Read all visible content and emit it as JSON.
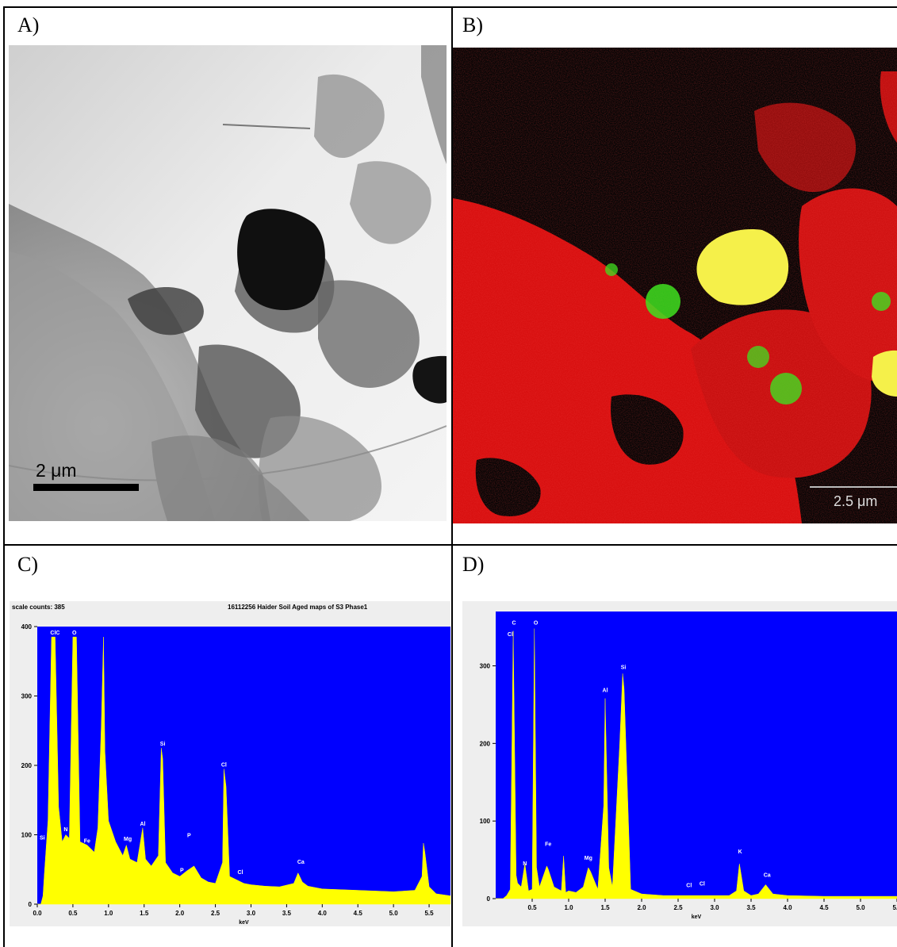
{
  "panels": {
    "a": {
      "label": "A)",
      "scalebar": "2 μm",
      "colors": {
        "background": "#e8e8e8",
        "particle_dark": "#101010"
      }
    },
    "b": {
      "label": "B)",
      "scalebar": "2.5 μm",
      "colors": {
        "background": "#050505",
        "map_red": "#e01010",
        "map_green": "#40e020",
        "map_yellow": "#f5f04a"
      }
    },
    "c": {
      "label": "C)",
      "header_left": "scale counts: 385",
      "header_right": "16112256 Haider Soil Aged maps of S3 Phase1"
    },
    "d": {
      "label": "D)"
    }
  },
  "chart_data": [
    {
      "type": "area",
      "panel": "C",
      "title": "16112256 Haider Soil Aged maps of S3 Phase1",
      "subtitle": "scale counts: 385",
      "xlabel": "keV",
      "ylabel": "",
      "xlim": [
        0,
        5.8
      ],
      "ylim": [
        0,
        400
      ],
      "xticks": [
        "0.0",
        "0.5",
        "1.0",
        "1.5",
        "2.0",
        "2.5",
        "3.0",
        "3.5",
        "4.0",
        "4.5",
        "5.0",
        "5.5"
      ],
      "yticks": [
        "0",
        "100",
        "200",
        "300",
        "400"
      ],
      "colors": {
        "plot_bg": "#0000ff",
        "fill": "#ffff00"
      },
      "x": [
        0.0,
        0.05,
        0.08,
        0.1,
        0.15,
        0.2,
        0.25,
        0.3,
        0.35,
        0.4,
        0.45,
        0.5,
        0.55,
        0.6,
        0.7,
        0.8,
        0.85,
        0.9,
        0.93,
        0.95,
        1.0,
        1.1,
        1.2,
        1.25,
        1.3,
        1.4,
        1.48,
        1.52,
        1.6,
        1.7,
        1.74,
        1.76,
        1.8,
        1.9,
        2.0,
        2.1,
        2.2,
        2.3,
        2.4,
        2.5,
        2.6,
        2.62,
        2.65,
        2.7,
        2.8,
        2.9,
        3.0,
        3.2,
        3.4,
        3.6,
        3.66,
        3.72,
        3.8,
        4.0,
        4.5,
        5.0,
        5.3,
        5.4,
        5.42,
        5.44,
        5.5,
        5.6,
        5.8
      ],
      "y": [
        0,
        0,
        12,
        45,
        120,
        385,
        385,
        140,
        90,
        100,
        95,
        385,
        385,
        90,
        85,
        75,
        110,
        260,
        385,
        220,
        120,
        90,
        70,
        85,
        65,
        60,
        110,
        65,
        55,
        70,
        225,
        210,
        60,
        45,
        40,
        48,
        55,
        38,
        32,
        30,
        60,
        195,
        170,
        40,
        35,
        30,
        28,
        26,
        25,
        30,
        45,
        32,
        26,
        22,
        20,
        18,
        20,
        40,
        88,
        75,
        25,
        15,
        12
      ],
      "annotations": [
        {
          "text": "Si",
          "x": 0.07,
          "y": 90
        },
        {
          "text": "ClC",
          "x": 0.25,
          "y": 385
        },
        {
          "text": "N",
          "x": 0.4,
          "y": 102
        },
        {
          "text": "O",
          "x": 0.52,
          "y": 385
        },
        {
          "text": "Fe",
          "x": 0.7,
          "y": 85
        },
        {
          "text": "Mg",
          "x": 1.27,
          "y": 88
        },
        {
          "text": "Al",
          "x": 1.48,
          "y": 110
        },
        {
          "text": "Si",
          "x": 1.76,
          "y": 225
        },
        {
          "text": "P",
          "x": 2.03,
          "y": 43
        },
        {
          "text": "P",
          "x": 2.13,
          "y": 93
        },
        {
          "text": "Cl",
          "x": 2.62,
          "y": 195
        },
        {
          "text": "Cl",
          "x": 2.85,
          "y": 40
        },
        {
          "text": "Ca",
          "x": 3.7,
          "y": 55
        }
      ]
    },
    {
      "type": "area",
      "panel": "D",
      "xlabel": "keV",
      "ylabel": "",
      "xlim": [
        0,
        5.5
      ],
      "ylim": [
        0,
        370
      ],
      "xticks": [
        "0.5",
        "1.0",
        "1.5",
        "2.0",
        "2.5",
        "3.0",
        "3.5",
        "4.0",
        "4.5",
        "5.0",
        "5.5"
      ],
      "yticks": [
        "0",
        "100",
        "200",
        "300"
      ],
      "colors": {
        "plot_bg": "#0000ff",
        "fill": "#ffff00"
      },
      "x": [
        0.0,
        0.1,
        0.15,
        0.2,
        0.24,
        0.28,
        0.3,
        0.35,
        0.4,
        0.45,
        0.5,
        0.53,
        0.56,
        0.6,
        0.7,
        0.72,
        0.8,
        0.9,
        0.93,
        0.96,
        1.0,
        1.1,
        1.2,
        1.27,
        1.3,
        1.4,
        1.48,
        1.5,
        1.55,
        1.6,
        1.7,
        1.74,
        1.76,
        1.85,
        2.0,
        2.3,
        2.6,
        2.8,
        3.0,
        3.2,
        3.3,
        3.34,
        3.4,
        3.5,
        3.6,
        3.7,
        3.8,
        4.0,
        4.5,
        5.0,
        5.5
      ],
      "y": [
        0,
        0,
        4,
        12,
        345,
        30,
        20,
        15,
        45,
        10,
        12,
        348,
        40,
        15,
        42,
        38,
        15,
        10,
        55,
        8,
        10,
        8,
        15,
        40,
        35,
        12,
        120,
        258,
        40,
        15,
        200,
        290,
        270,
        12,
        6,
        4,
        4,
        4,
        4,
        4,
        10,
        45,
        10,
        4,
        6,
        18,
        6,
        4,
        3,
        3,
        3
      ],
      "annotations": [
        {
          "text": "Cl",
          "x": 0.2,
          "y": 335
        },
        {
          "text": "C",
          "x": 0.25,
          "y": 350
        },
        {
          "text": "N",
          "x": 0.4,
          "y": 40
        },
        {
          "text": "O",
          "x": 0.55,
          "y": 350
        },
        {
          "text": "Fe",
          "x": 0.72,
          "y": 65
        },
        {
          "text": "Mg",
          "x": 1.27,
          "y": 47
        },
        {
          "text": "Al",
          "x": 1.5,
          "y": 263
        },
        {
          "text": "Si",
          "x": 1.75,
          "y": 293
        },
        {
          "text": "Cl",
          "x": 2.65,
          "y": 12
        },
        {
          "text": "Cl",
          "x": 2.83,
          "y": 14
        },
        {
          "text": "K",
          "x": 3.35,
          "y": 55
        },
        {
          "text": "Ca",
          "x": 3.72,
          "y": 25
        }
      ]
    }
  ]
}
